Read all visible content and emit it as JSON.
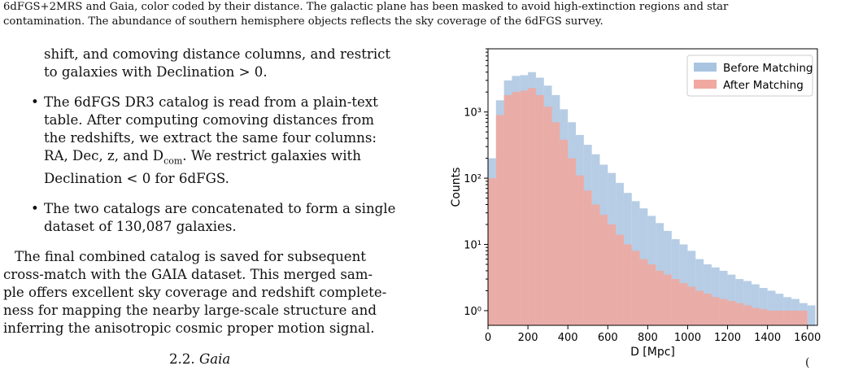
{
  "caption": {
    "line1": "6dFGS+2MRS and Gaia, color coded by their distance. The galactic plane has been masked to avoid high-extinction regions and star",
    "line2": "contamination. The abundance of southern hemisphere objects reflects the sky coverage of the 6dFGS survey."
  },
  "body": {
    "p1_line1": "shift, and comoving distance columns, and restrict",
    "p1_line2": "to galaxies with Declination > 0.",
    "bullet1": [
      "The 6dFGS DR3 catalog is read from a plain-text",
      "table.  After computing comoving distances from",
      "the redshifts, we extract the same four columns:",
      "RA, Dec, z, and D",
      "com",
      ". We restrict galaxies with",
      "Declination < 0 for 6dFGS."
    ],
    "bullet2": [
      "The two catalogs are concatenated to form a single",
      "dataset of 130,087 galaxies."
    ],
    "p2": [
      "The final combined catalog is saved for subsequent",
      "cross-match with the GAIA dataset. This merged sam-",
      "ple offers excellent sky coverage and redshift complete-",
      "ness for mapping the nearby large-scale structure and",
      "inferring the anisotropic cosmic proper motion signal."
    ],
    "section_number": "2.2.",
    "section_title": "Gaia",
    "bullet_glyph": "•",
    "bottom_fragment": "("
  },
  "chart_data": {
    "type": "bar",
    "xlabel": "D [Mpc]",
    "ylabel": "Counts",
    "xlim": [
      0,
      1650
    ],
    "ylim": [
      0.6,
      9000
    ],
    "y_scale": "log",
    "x_ticks": [
      0,
      200,
      400,
      600,
      800,
      1000,
      1200,
      1400,
      1600
    ],
    "y_ticks": [
      {
        "value": 1,
        "label": "10⁰"
      },
      {
        "value": 10,
        "label": "10¹"
      },
      {
        "value": 100,
        "label": "10²"
      },
      {
        "value": 1000,
        "label": "10³"
      }
    ],
    "legend_position": "top-right",
    "series": [
      {
        "name": "Before Matching",
        "color": "#a9c4e0",
        "x": [
          0,
          40,
          80,
          120,
          160,
          200,
          240,
          280,
          320,
          360,
          400,
          440,
          480,
          520,
          560,
          600,
          640,
          680,
          720,
          760,
          800,
          840,
          880,
          920,
          960,
          1000,
          1040,
          1080,
          1120,
          1160,
          1200,
          1240,
          1280,
          1320,
          1360,
          1400,
          1440,
          1480,
          1520,
          1560,
          1600
        ],
        "values": [
          200,
          1500,
          3000,
          3500,
          3600,
          4000,
          3300,
          2500,
          1800,
          1100,
          700,
          450,
          320,
          230,
          160,
          120,
          85,
          60,
          45,
          35,
          27,
          21,
          16,
          12,
          10,
          8,
          6,
          5,
          4.5,
          4,
          3.5,
          3,
          2.8,
          2.5,
          2.2,
          2,
          1.8,
          1.6,
          1.5,
          1.3,
          1.2
        ]
      },
      {
        "name": "After Matching",
        "color": "#f0a8a0",
        "x": [
          0,
          40,
          80,
          120,
          160,
          200,
          240,
          280,
          320,
          360,
          400,
          440,
          480,
          520,
          560,
          600,
          640,
          680,
          720,
          760,
          800,
          840,
          880,
          920,
          960,
          1000,
          1040,
          1080,
          1120,
          1160,
          1200,
          1240,
          1280,
          1320,
          1360,
          1400,
          1440,
          1480,
          1520,
          1560
        ],
        "values": [
          100,
          900,
          1800,
          2000,
          2100,
          2300,
          1800,
          1200,
          700,
          380,
          200,
          110,
          65,
          40,
          28,
          20,
          14,
          10,
          8,
          6,
          5,
          4,
          3.5,
          3,
          2.6,
          2.3,
          2,
          1.8,
          1.6,
          1.5,
          1.4,
          1.3,
          1.2,
          1.1,
          1.05,
          1.0,
          1.0,
          1.0,
          1.0,
          1.0
        ]
      }
    ]
  }
}
